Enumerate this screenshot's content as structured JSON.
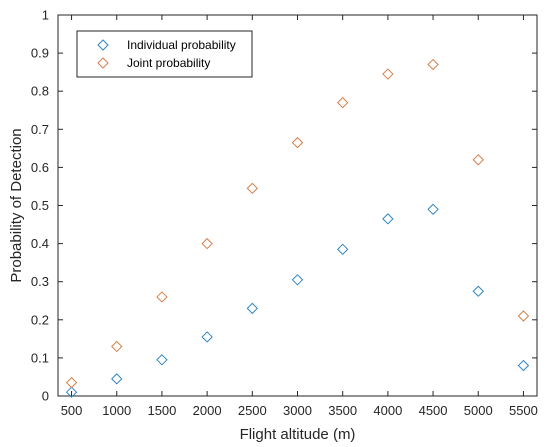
{
  "chart_data": {
    "type": "scatter",
    "title": "",
    "xlabel": "Flight altitude (m)",
    "ylabel": "Probability of Detection",
    "x": [
      500,
      1000,
      1500,
      2000,
      2500,
      3000,
      3500,
      4000,
      4500,
      5000,
      5500
    ],
    "xticks": [
      500,
      1000,
      1500,
      2000,
      2500,
      3000,
      3500,
      4000,
      4500,
      5000,
      5500
    ],
    "yticks": [
      0,
      0.1,
      0.2,
      0.3,
      0.4,
      0.5,
      0.6,
      0.7,
      0.8,
      0.9,
      1
    ],
    "xlim": [
      350,
      5650
    ],
    "ylim": [
      0,
      1
    ],
    "grid": false,
    "legend_position": "top-left",
    "marker": "diamond",
    "series": [
      {
        "name": "Individual probability",
        "color": "#2e86c1",
        "values": [
          0.01,
          0.045,
          0.095,
          0.155,
          0.23,
          0.305,
          0.385,
          0.465,
          0.49,
          0.275,
          0.08
        ]
      },
      {
        "name": "Joint probability",
        "color": "#d4804a",
        "values": [
          0.035,
          0.13,
          0.26,
          0.4,
          0.545,
          0.665,
          0.77,
          0.845,
          0.87,
          0.62,
          0.21
        ]
      }
    ]
  }
}
